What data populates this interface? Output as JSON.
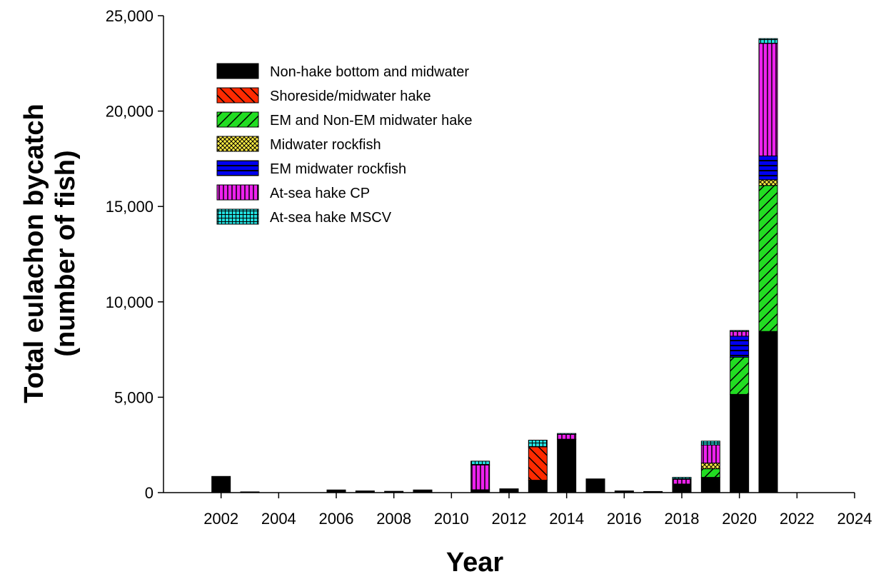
{
  "chart_data": {
    "type": "bar",
    "stacked": true,
    "title": "",
    "xlabel": "Year",
    "ylabel_lines": [
      "Total eulachon bycatch",
      "(number of fish)"
    ],
    "xlim": [
      2000,
      2024
    ],
    "ylim": [
      0,
      25000
    ],
    "xticks": [
      2002,
      2004,
      2006,
      2008,
      2010,
      2012,
      2014,
      2016,
      2018,
      2020,
      2022,
      2024
    ],
    "xtick_labels": [
      "2002",
      "2004",
      "2006",
      "2008",
      "2010",
      "2012",
      "2014",
      "2016",
      "2018",
      "2020",
      "2022",
      "2024"
    ],
    "yticks": [
      0,
      5000,
      10000,
      15000,
      20000,
      25000
    ],
    "ytick_labels": [
      "0",
      "5,000",
      "10,000",
      "15,000",
      "20,000",
      "25,000"
    ],
    "grid": false,
    "legend_position": "top-left",
    "x": [
      2002,
      2003,
      2004,
      2005,
      2006,
      2007,
      2008,
      2009,
      2010,
      2011,
      2012,
      2013,
      2014,
      2015,
      2016,
      2017,
      2018,
      2019,
      2020,
      2021
    ],
    "series": [
      {
        "name": "Non-hake bottom and midwater",
        "color": "#000000",
        "pattern": "solid",
        "values": [
          850,
          40,
          0,
          0,
          140,
          90,
          70,
          140,
          0,
          150,
          200,
          650,
          2800,
          720,
          90,
          60,
          450,
          800,
          5150,
          8450
        ]
      },
      {
        "name": "Shoreside/midwater hake",
        "color": "#ff2a00",
        "pattern": "diag-down",
        "values": [
          0,
          0,
          0,
          0,
          0,
          0,
          0,
          0,
          0,
          0,
          0,
          1750,
          0,
          0,
          0,
          0,
          0,
          0,
          0,
          0
        ]
      },
      {
        "name": "EM and Non-EM midwater hake",
        "color": "#22dd22",
        "pattern": "diag-up",
        "values": [
          0,
          0,
          0,
          0,
          0,
          0,
          0,
          0,
          0,
          0,
          0,
          0,
          0,
          0,
          0,
          0,
          0,
          450,
          1950,
          7650
        ]
      },
      {
        "name": "Midwater rockfish",
        "color": "#ffee44",
        "pattern": "cross",
        "values": [
          0,
          0,
          0,
          0,
          0,
          0,
          0,
          0,
          0,
          0,
          0,
          0,
          0,
          0,
          0,
          0,
          0,
          300,
          0,
          300
        ]
      },
      {
        "name": "EM midwater rockfish",
        "color": "#0000ee",
        "pattern": "horizontal",
        "values": [
          0,
          0,
          0,
          0,
          0,
          0,
          0,
          0,
          0,
          0,
          0,
          0,
          0,
          0,
          0,
          0,
          0,
          0,
          1100,
          1250
        ]
      },
      {
        "name": "At-sea hake CP",
        "color": "#ee22ee",
        "pattern": "vertical",
        "values": [
          0,
          0,
          0,
          0,
          0,
          0,
          0,
          0,
          0,
          1300,
          0,
          0,
          250,
          0,
          0,
          0,
          250,
          950,
          250,
          5900
        ]
      },
      {
        "name": "At-sea hake MSCV",
        "color": "#22dddd",
        "pattern": "grid",
        "values": [
          0,
          0,
          0,
          0,
          0,
          0,
          0,
          0,
          0,
          200,
          0,
          350,
          50,
          0,
          0,
          0,
          100,
          200,
          50,
          250
        ]
      }
    ]
  }
}
